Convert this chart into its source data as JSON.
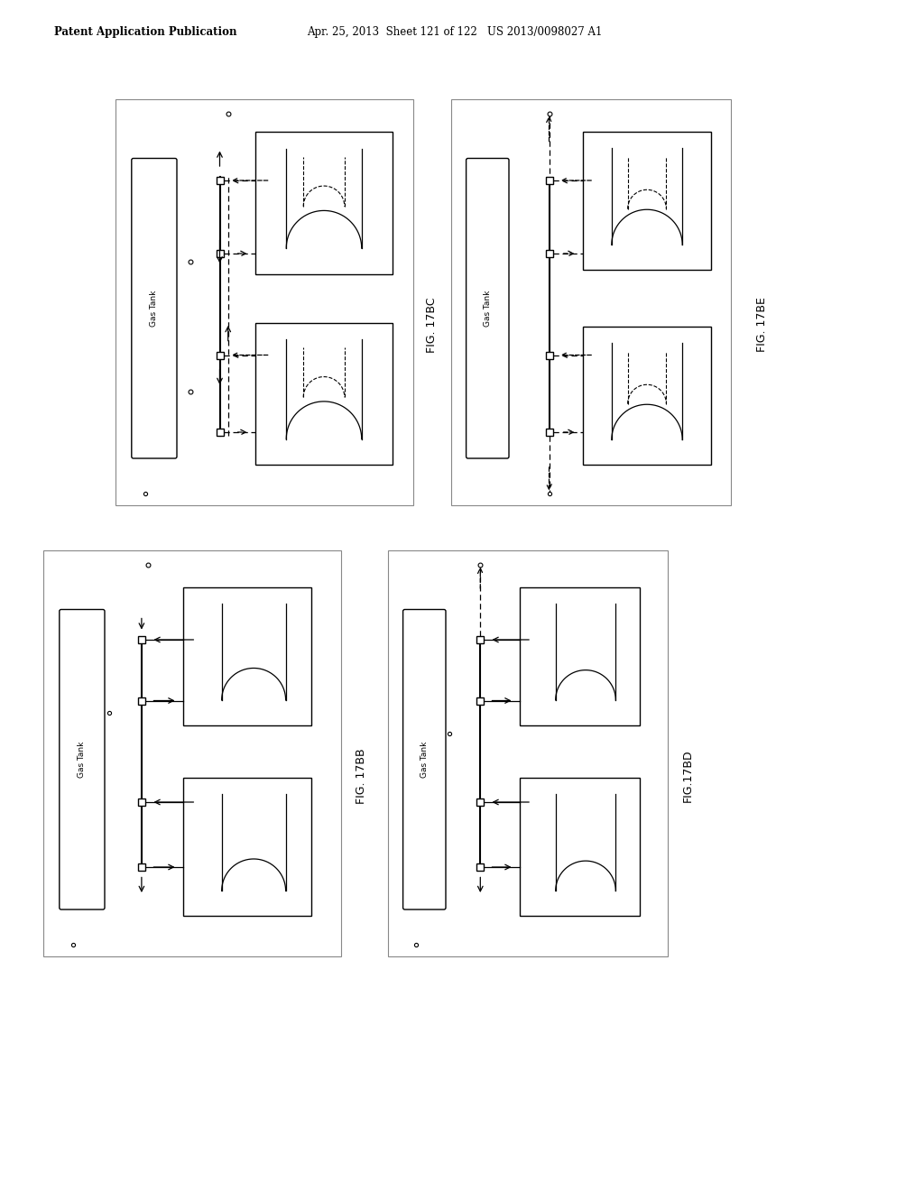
{
  "bg_color": "#e8e8e8",
  "page_bg": "#f0f0f0",
  "header_left": "Patent Application Publication",
  "header_right": "Apr. 25, 2013  Sheet 121 of 122   US 2013/0098027 A1",
  "fig_labels": [
    "FIG. 17BC",
    "FIG. 17BE",
    "FIG. 17BB",
    "FIG. 17BB",
    "FIG.17BD"
  ],
  "label_BC": "FIG. 17BC",
  "label_BE": "FIG. 17BE",
  "label_BB": "FIG. 17BB",
  "label_BD": "FIG.17BD"
}
